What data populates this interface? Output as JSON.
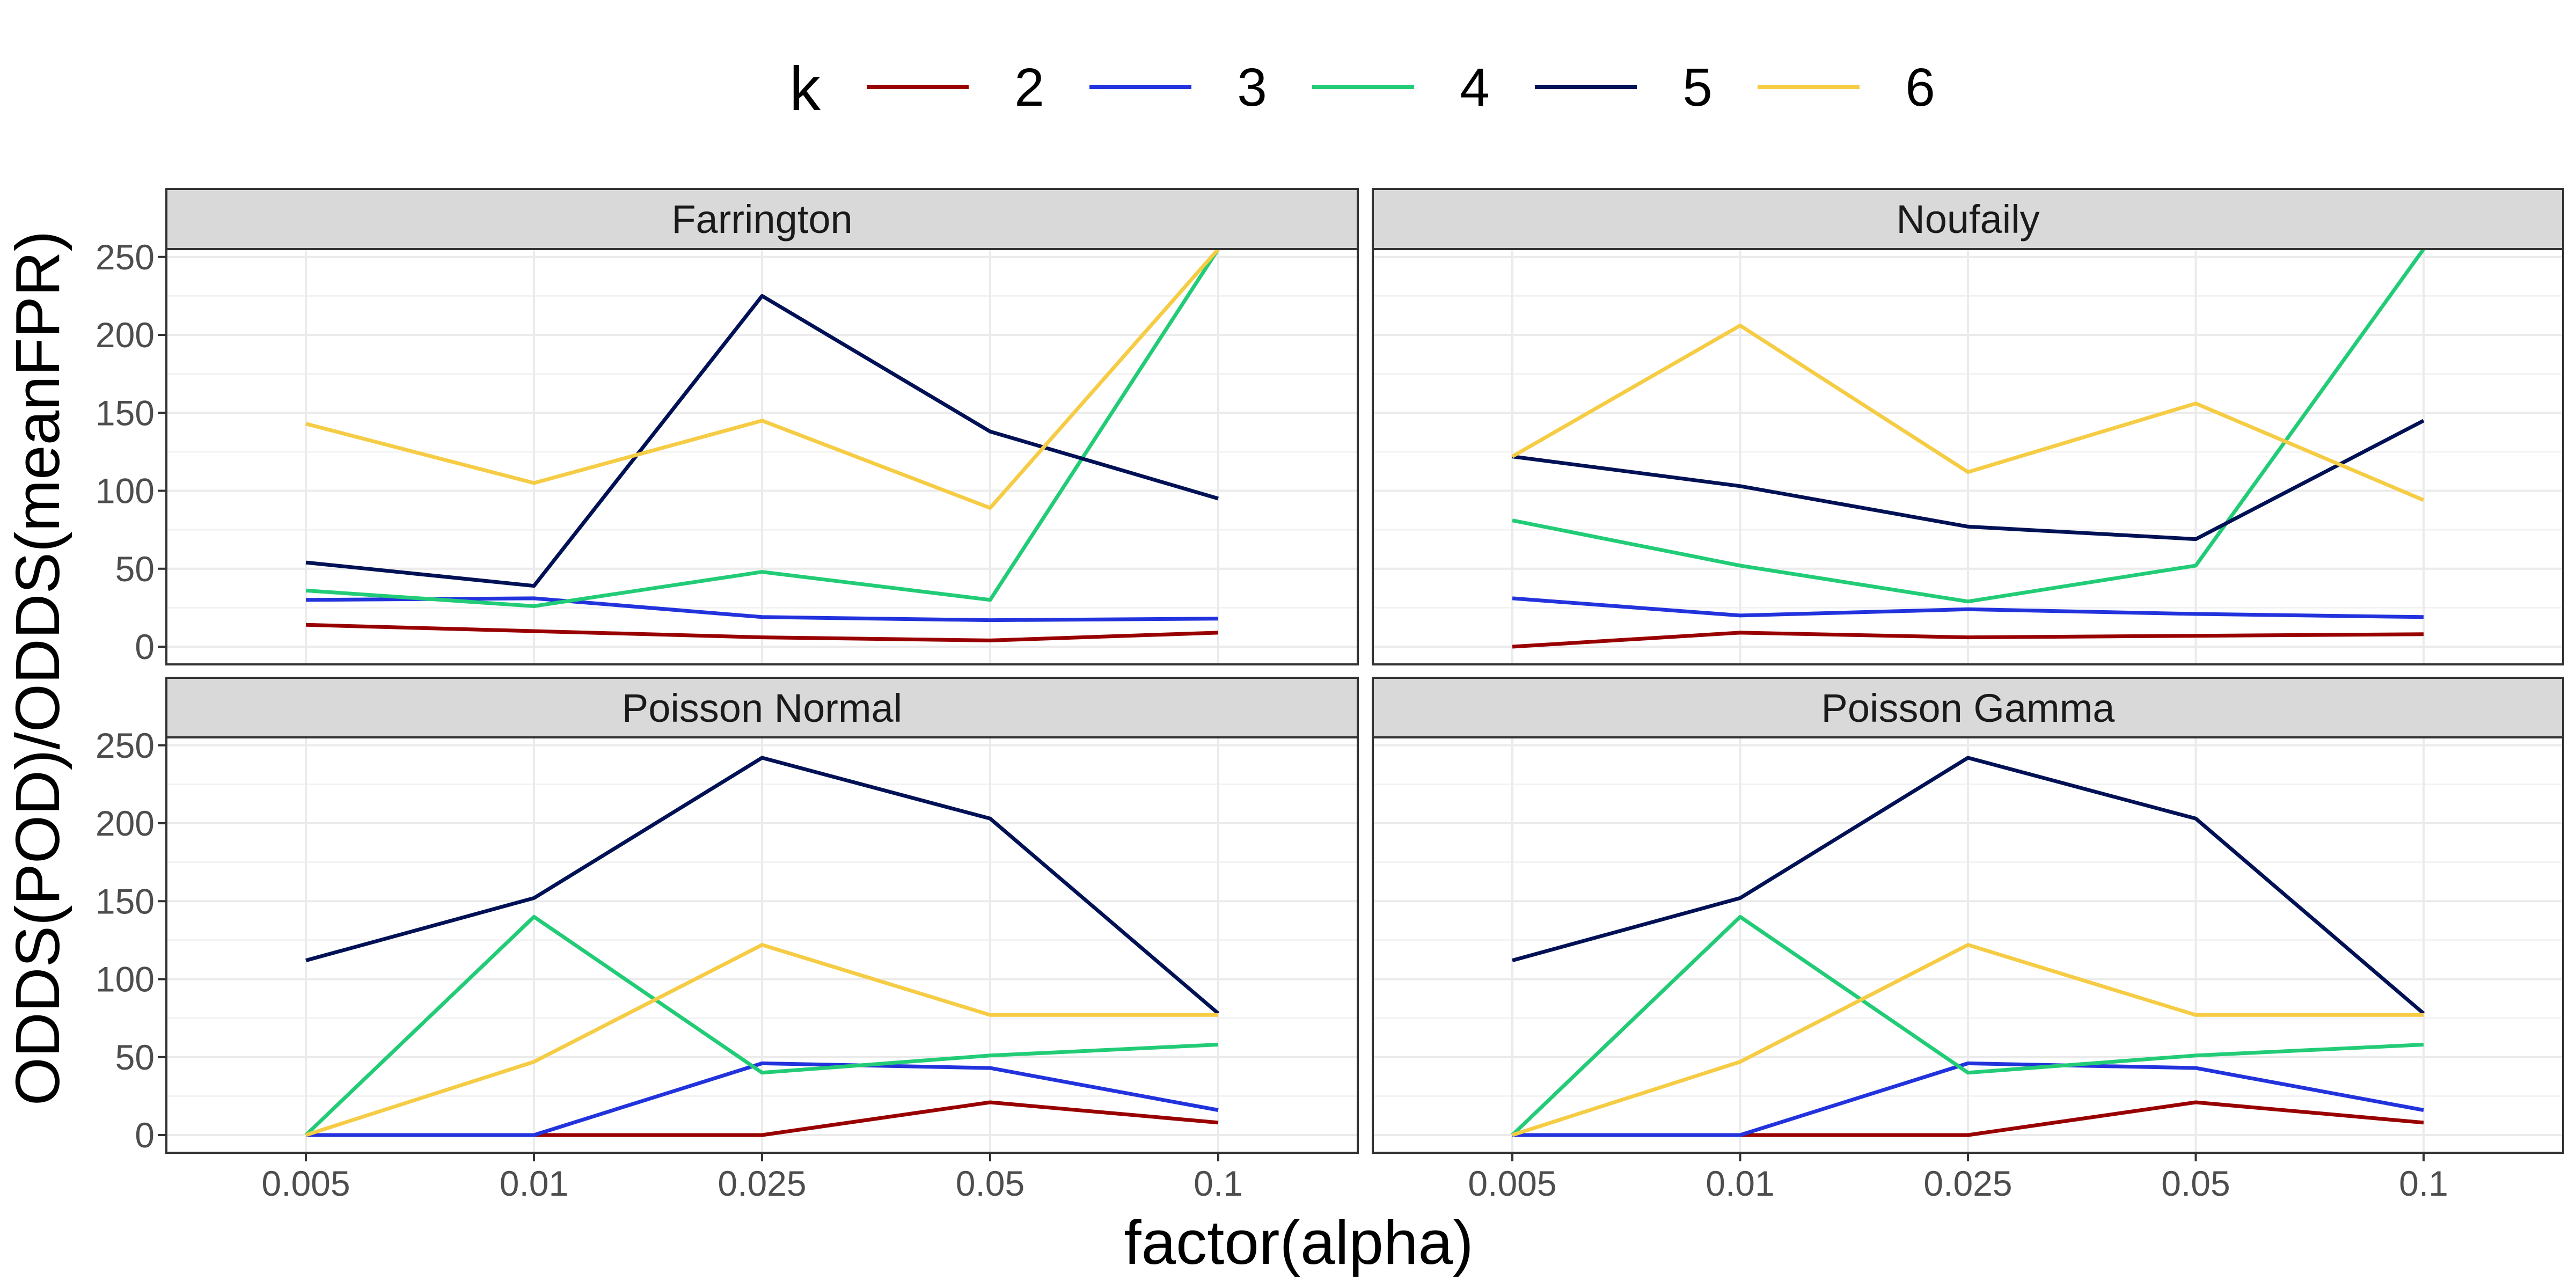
{
  "chart_data": {
    "type": "line",
    "xlabel": "factor(alpha)",
    "ylabel": "ODDS(POD)/ODDS(meanFPR)",
    "x": [
      "0.005",
      "0.01",
      "0.025",
      "0.05",
      "0.1"
    ],
    "y_ticks": [
      0,
      50,
      100,
      150,
      200,
      250
    ],
    "ylim": [
      -10,
      255
    ],
    "grid": true,
    "legend": {
      "title": "k",
      "position": "top",
      "entries": [
        "2",
        "3",
        "4",
        "5",
        "6"
      ]
    },
    "colors": {
      "2": "#990000",
      "3": "#2233dd",
      "4": "#22cc77",
      "5": "#001155",
      "6": "#f5cc44"
    },
    "panels": [
      {
        "title": "Farrington",
        "series": [
          {
            "name": "2",
            "values": [
              14,
              10,
              6,
              4,
              9
            ]
          },
          {
            "name": "3",
            "values": [
              30,
              31,
              19,
              17,
              18
            ]
          },
          {
            "name": "4",
            "values": [
              36,
              26,
              48,
              30,
              255
            ]
          },
          {
            "name": "5",
            "values": [
              54,
              39,
              225,
              138,
              95
            ]
          },
          {
            "name": "6",
            "values": [
              143,
              105,
              145,
              89,
              255
            ]
          }
        ]
      },
      {
        "title": "Noufaily",
        "series": [
          {
            "name": "2",
            "values": [
              0,
              9,
              6,
              7,
              8
            ]
          },
          {
            "name": "3",
            "values": [
              31,
              20,
              24,
              21,
              19
            ]
          },
          {
            "name": "4",
            "values": [
              81,
              52,
              29,
              52,
              255
            ]
          },
          {
            "name": "5",
            "values": [
              122,
              103,
              77,
              69,
              145
            ]
          },
          {
            "name": "6",
            "values": [
              122,
              206,
              112,
              156,
              94
            ]
          }
        ]
      },
      {
        "title": "Poisson Normal",
        "series": [
          {
            "name": "2",
            "values": [
              0,
              0,
              0,
              21,
              8
            ]
          },
          {
            "name": "3",
            "values": [
              0,
              0,
              46,
              43,
              16
            ]
          },
          {
            "name": "4",
            "values": [
              0,
              140,
              40,
              51,
              58
            ]
          },
          {
            "name": "5",
            "values": [
              112,
              152,
              242,
              203,
              78
            ]
          },
          {
            "name": "6",
            "values": [
              0,
              47,
              122,
              77,
              77
            ]
          }
        ]
      },
      {
        "title": "Poisson Gamma",
        "series": [
          {
            "name": "2",
            "values": [
              0,
              0,
              0,
              21,
              8
            ]
          },
          {
            "name": "3",
            "values": [
              0,
              0,
              46,
              43,
              16
            ]
          },
          {
            "name": "4",
            "values": [
              0,
              140,
              40,
              51,
              58
            ]
          },
          {
            "name": "5",
            "values": [
              112,
              152,
              242,
              203,
              78
            ]
          },
          {
            "name": "6",
            "values": [
              0,
              47,
              122,
              77,
              77
            ]
          }
        ]
      }
    ]
  }
}
